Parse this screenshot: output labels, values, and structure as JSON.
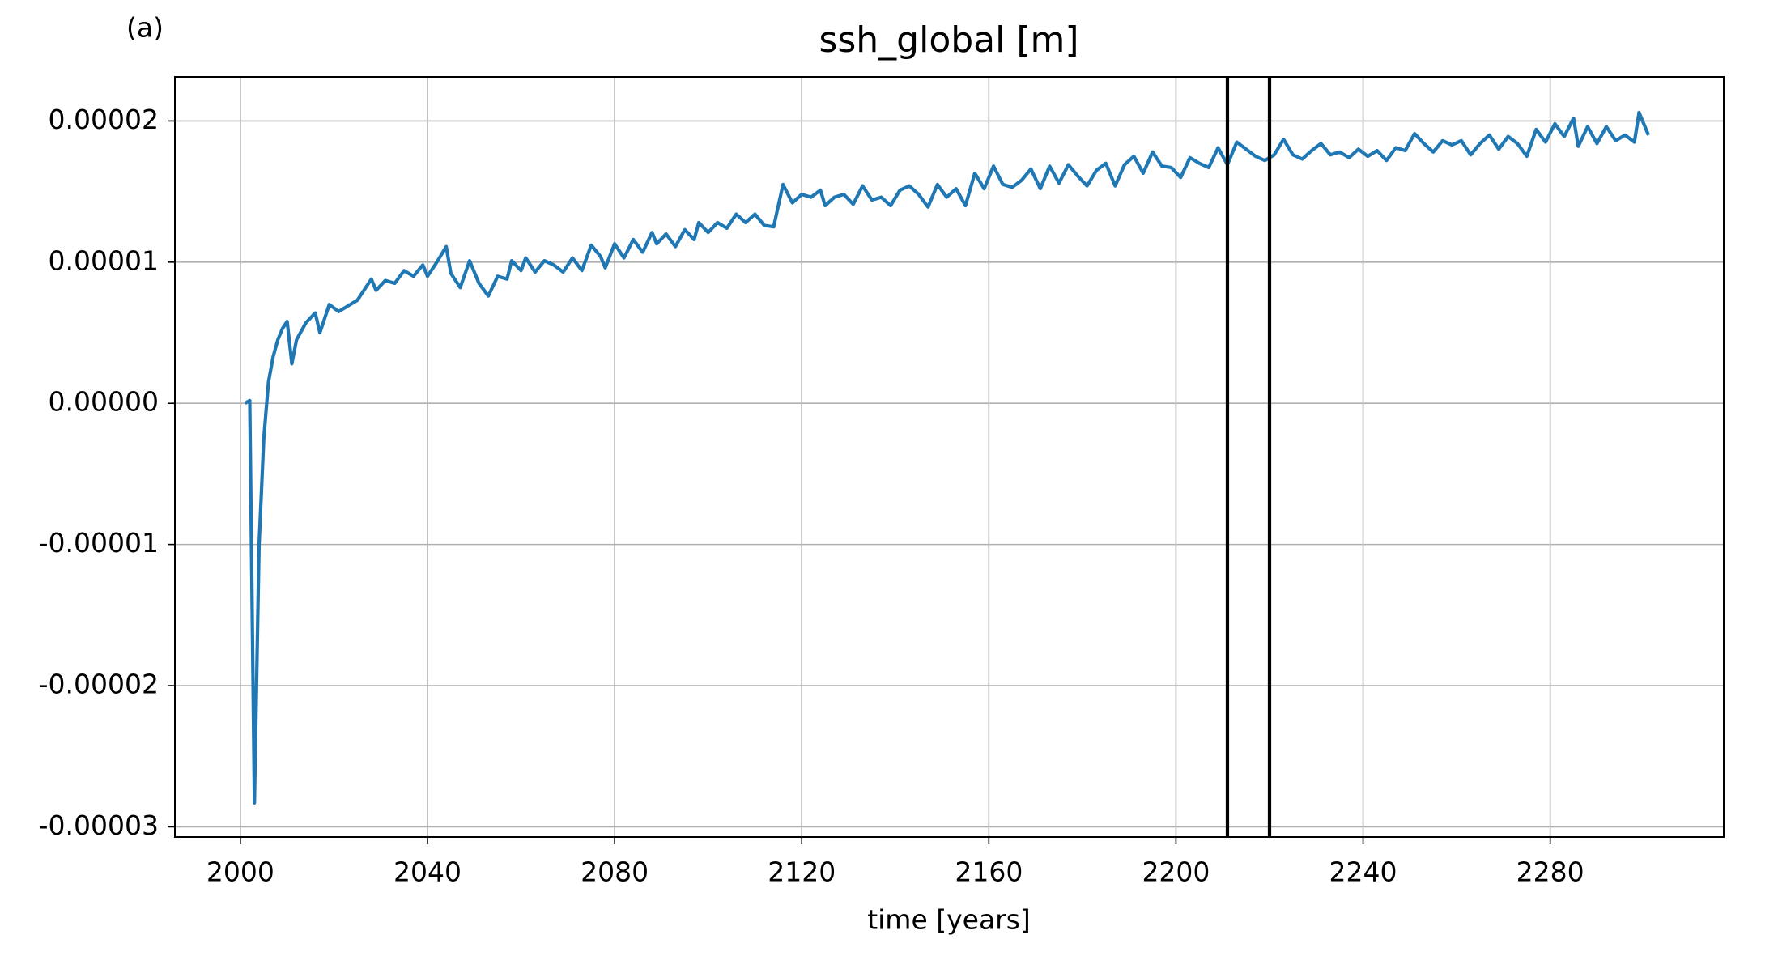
{
  "chart_data": {
    "type": "line",
    "panel_label": "(a)",
    "title": "ssh_global [m]",
    "xlabel": "time [years]",
    "xlim": [
      1986,
      2317.1
    ],
    "ylim": [
      -3.072e-05,
      2.312e-05
    ],
    "xticks": [
      2000,
      2040,
      2080,
      2120,
      2160,
      2200,
      2240,
      2280
    ],
    "yticks": [
      {
        "value": -3e-05,
        "label": "-0.00003"
      },
      {
        "value": -2e-05,
        "label": "-0.00002"
      },
      {
        "value": -1e-05,
        "label": "-0.00001"
      },
      {
        "value": 0,
        "label": "0.00000"
      },
      {
        "value": 1e-05,
        "label": "0.00001"
      },
      {
        "value": 2e-05,
        "label": "0.00002"
      }
    ],
    "grid": true,
    "vlines": [
      2211,
      2220
    ],
    "vline_color": "#000000",
    "x": [
      2001,
      2002,
      2003,
      2004,
      2005,
      2006,
      2007,
      2008,
      2009,
      2010,
      2011,
      2012,
      2014,
      2016,
      2017,
      2019,
      2021,
      2023,
      2025,
      2028,
      2029,
      2031,
      2033,
      2035,
      2037,
      2039,
      2040,
      2042,
      2044,
      2045,
      2047,
      2049,
      2051,
      2053,
      2055,
      2057,
      2058,
      2060,
      2061,
      2063,
      2065,
      2067,
      2069,
      2071,
      2073,
      2075,
      2077,
      2078,
      2080,
      2082,
      2084,
      2086,
      2088,
      2089,
      2091,
      2093,
      2095,
      2097,
      2098,
      2100,
      2102,
      2104,
      2106,
      2108,
      2110,
      2112,
      2114,
      2116,
      2118,
      2120,
      2122,
      2124,
      2125,
      2127,
      2129,
      2131,
      2133,
      2135,
      2137,
      2139,
      2141,
      2143,
      2145,
      2147,
      2149,
      2151,
      2153,
      2155,
      2157,
      2159,
      2161,
      2163,
      2165,
      2167,
      2169,
      2171,
      2173,
      2175,
      2177,
      2179,
      2181,
      2183,
      2185,
      2187,
      2189,
      2191,
      2193,
      2195,
      2197,
      2199,
      2201,
      2203,
      2205,
      2207,
      2209,
      2211,
      2213,
      2215,
      2217,
      2219,
      2221,
      2223,
      2225,
      2227,
      2229,
      2231,
      2233,
      2235,
      2237,
      2239,
      2241,
      2243,
      2245,
      2247,
      2249,
      2251,
      2253,
      2255,
      2257,
      2259,
      2261,
      2263,
      2265,
      2267,
      2269,
      2271,
      2273,
      2275,
      2277,
      2279,
      2281,
      2283,
      2285,
      2286,
      2288,
      2290,
      2292,
      2294,
      2296,
      2298,
      2299,
      2301
    ],
    "series": [
      {
        "color": "#1f77b4",
        "values": [
          0,
          2e-07,
          -2.83e-05,
          -1e-05,
          -2.5e-06,
          1.5e-06,
          3.3e-06,
          4.5e-06,
          5.3e-06,
          5.8e-06,
          2.8e-06,
          4.5e-06,
          5.7e-06,
          6.4e-06,
          5e-06,
          7e-06,
          6.5e-06,
          6.9e-06,
          7.3e-06,
          8.8e-06,
          8e-06,
          8.7e-06,
          8.5e-06,
          9.4e-06,
          9e-06,
          9.8e-06,
          9e-06,
          1e-05,
          1.11e-05,
          9.2e-06,
          8.2e-06,
          1.01e-05,
          8.5e-06,
          7.6e-06,
          9e-06,
          8.8e-06,
          1.01e-05,
          9.4e-06,
          1.03e-05,
          9.3e-06,
          1.01e-05,
          9.8e-06,
          9.3e-06,
          1.03e-05,
          9.4e-06,
          1.12e-05,
          1.04e-05,
          9.6e-06,
          1.13e-05,
          1.03e-05,
          1.16e-05,
          1.07e-05,
          1.21e-05,
          1.13e-05,
          1.2e-05,
          1.11e-05,
          1.23e-05,
          1.16e-05,
          1.28e-05,
          1.21e-05,
          1.28e-05,
          1.24e-05,
          1.34e-05,
          1.28e-05,
          1.34e-05,
          1.26e-05,
          1.25e-05,
          1.55e-05,
          1.42e-05,
          1.48e-05,
          1.46e-05,
          1.51e-05,
          1.4e-05,
          1.46e-05,
          1.48e-05,
          1.41e-05,
          1.54e-05,
          1.44e-05,
          1.46e-05,
          1.4e-05,
          1.51e-05,
          1.54e-05,
          1.48e-05,
          1.39e-05,
          1.55e-05,
          1.46e-05,
          1.52e-05,
          1.4e-05,
          1.63e-05,
          1.52e-05,
          1.68e-05,
          1.55e-05,
          1.53e-05,
          1.58e-05,
          1.66e-05,
          1.52e-05,
          1.68e-05,
          1.56e-05,
          1.69e-05,
          1.61e-05,
          1.54e-05,
          1.65e-05,
          1.7e-05,
          1.54e-05,
          1.69e-05,
          1.75e-05,
          1.63e-05,
          1.78e-05,
          1.68e-05,
          1.67e-05,
          1.6e-05,
          1.74e-05,
          1.7e-05,
          1.67e-05,
          1.81e-05,
          1.69e-05,
          1.85e-05,
          1.8e-05,
          1.75e-05,
          1.72e-05,
          1.76e-05,
          1.87e-05,
          1.76e-05,
          1.73e-05,
          1.79e-05,
          1.84e-05,
          1.76e-05,
          1.78e-05,
          1.74e-05,
          1.8e-05,
          1.75e-05,
          1.79e-05,
          1.72e-05,
          1.81e-05,
          1.79e-05,
          1.91e-05,
          1.84e-05,
          1.78e-05,
          1.86e-05,
          1.83e-05,
          1.86e-05,
          1.76e-05,
          1.84e-05,
          1.9e-05,
          1.8e-05,
          1.89e-05,
          1.84e-05,
          1.75e-05,
          1.94e-05,
          1.85e-05,
          1.98e-05,
          1.89e-05,
          2.02e-05,
          1.82e-05,
          1.96e-05,
          1.84e-05,
          1.96e-05,
          1.86e-05,
          1.9e-05,
          1.85e-05,
          2.06e-05,
          1.9e-05
        ]
      }
    ]
  }
}
